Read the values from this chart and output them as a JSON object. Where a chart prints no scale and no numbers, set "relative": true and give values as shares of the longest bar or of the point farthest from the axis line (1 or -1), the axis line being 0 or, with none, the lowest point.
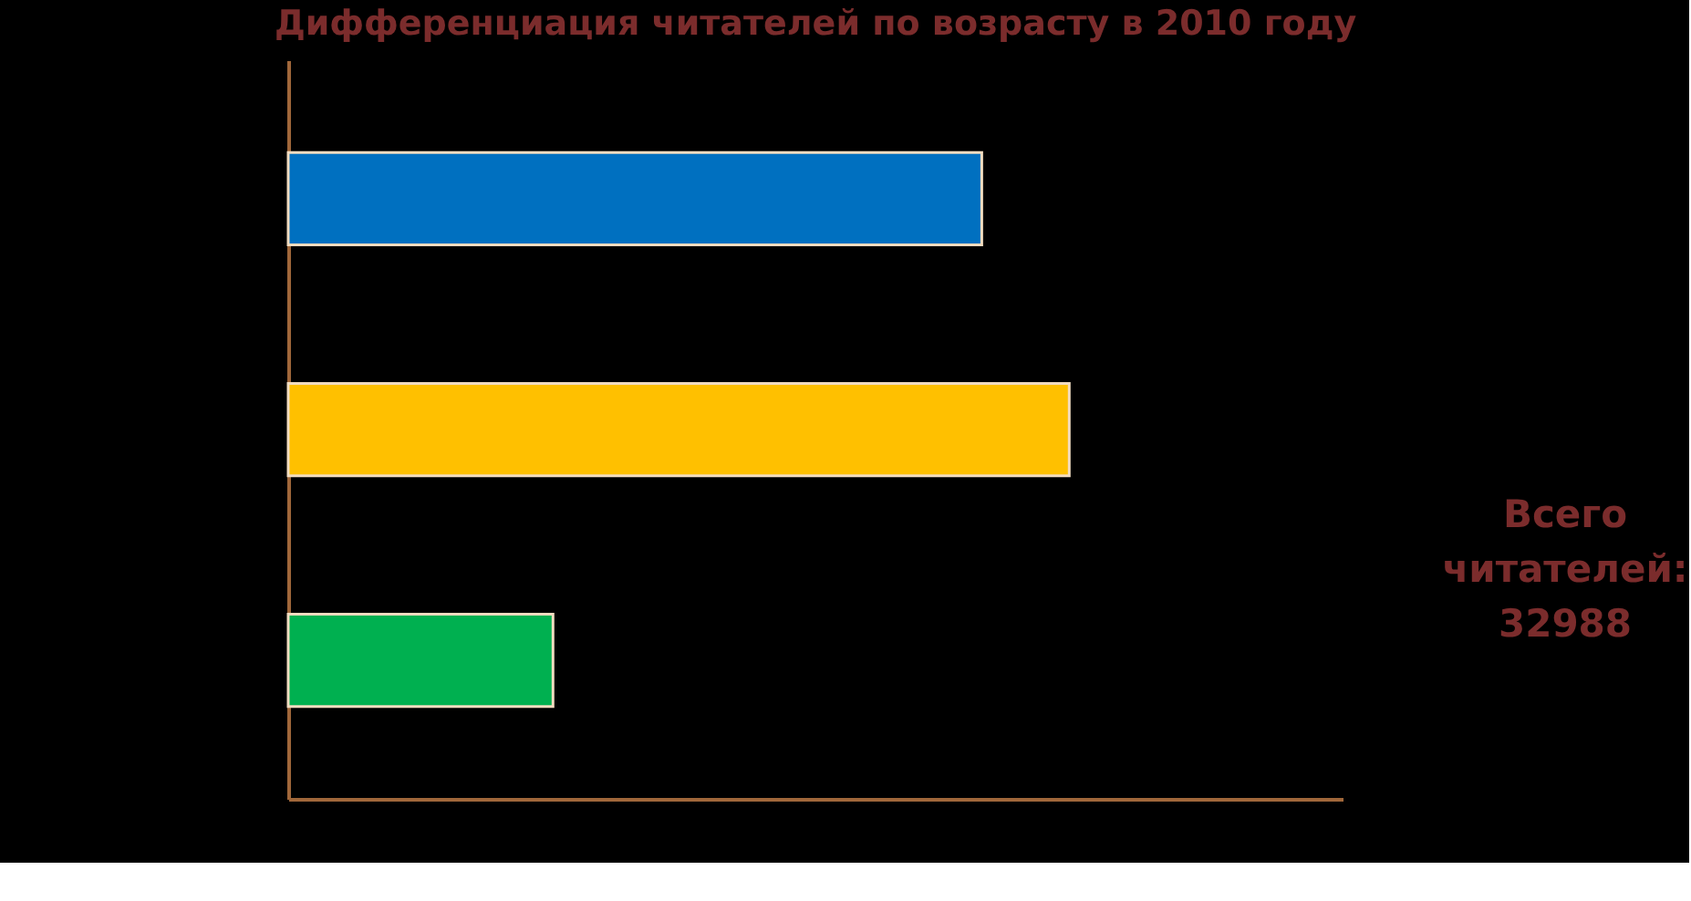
{
  "chart_data": {
    "type": "bar",
    "orientation": "horizontal",
    "relative": true,
    "title": "Дифференциация читателей по возрасту в 2010 году",
    "categories": [
      null,
      null,
      null
    ],
    "values": [
      0.888,
      1,
      0.339
    ],
    "colors": [
      "#0070c0",
      "#ffc000",
      "#00b050"
    ],
    "annotations": [
      "Всего читателей: 32988"
    ]
  }
}
